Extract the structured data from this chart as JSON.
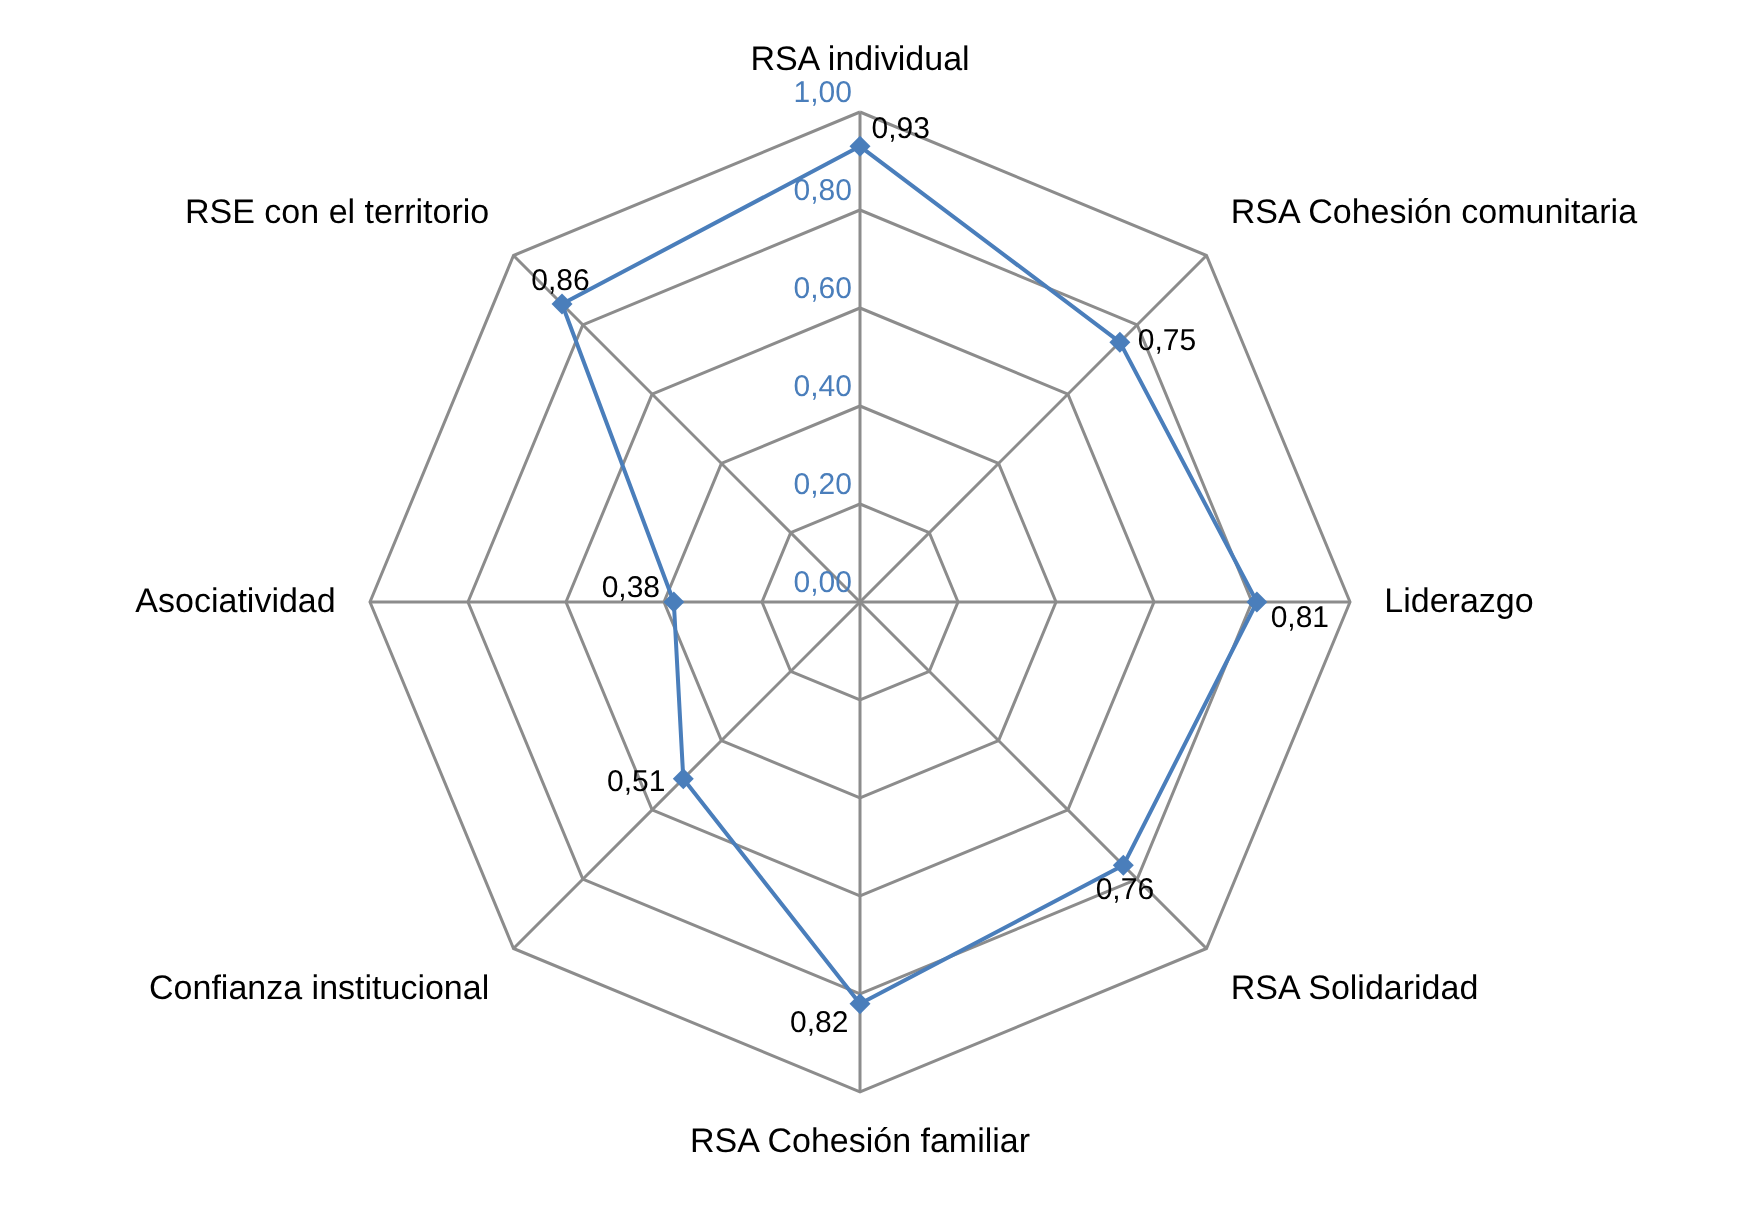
{
  "chart_data": {
    "type": "radar",
    "categories": [
      "RSA individual",
      "RSA Cohesión comunitaria",
      "Liderazgo",
      "RSA Solidaridad",
      "RSA Cohesión familiar",
      "Confianza institucional",
      "Asociatividad",
      "RSE con el territorio"
    ],
    "series": [
      {
        "color": "#4a7ebb",
        "values": [
          0.93,
          0.75,
          0.81,
          0.76,
          0.82,
          0.51,
          0.38,
          0.86
        ],
        "value_labels": [
          "0,93",
          "0,75",
          "0,81",
          "0,76",
          "0,82",
          "0,51",
          "0,38",
          "0,86"
        ]
      }
    ],
    "ylim": [
      0,
      1
    ],
    "yticks": [
      {
        "value": 0,
        "label": "0,00"
      },
      {
        "value": 0.2,
        "label": "0,20"
      },
      {
        "value": 0.4,
        "label": "0,40"
      },
      {
        "value": 0.6,
        "label": "0,60"
      },
      {
        "value": 0.8,
        "label": "0,80"
      },
      {
        "value": 1,
        "label": "1,00"
      }
    ],
    "grid": true,
    "marker": "diamond",
    "line_style": "solid"
  }
}
